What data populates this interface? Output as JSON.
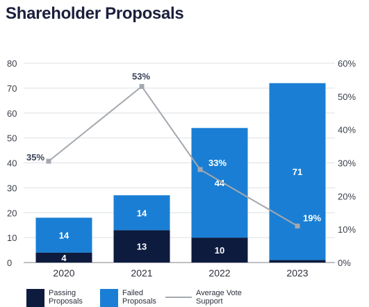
{
  "header": {
    "title": "Shareholder Proposals"
  },
  "chart_data": {
    "type": "bar",
    "stacked": true,
    "categories": [
      "2020",
      "2021",
      "2022",
      "2023"
    ],
    "series": [
      {
        "name": "Passing Proposals",
        "values": [
          4,
          13,
          10,
          1
        ],
        "color": "#0d1b3e"
      },
      {
        "name": "Failed Proposals",
        "values": [
          14,
          14,
          44,
          71
        ],
        "color": "#1a7fd4"
      }
    ],
    "line_series": {
      "name": "Average Vote Support",
      "values": [
        35,
        53,
        33,
        19
      ],
      "positions": [
        30.5,
        53,
        28,
        11
      ],
      "color": "#a3a8ae",
      "axis": "right"
    },
    "y_left": {
      "min": 0,
      "max": 80,
      "ticks": [
        "0",
        "10",
        "20",
        "30",
        "40",
        "50",
        "60",
        "70",
        "80"
      ]
    },
    "y_right": {
      "min": 0,
      "max": 60,
      "ticks": [
        "0%",
        "10%",
        "20%",
        "30%",
        "40%",
        "50%",
        "60%"
      ]
    },
    "grid": true,
    "legend_position": "bottom"
  },
  "legend": {
    "passing": "Passing Proposals",
    "failed": "Failed Proposals",
    "average": "Average Vote Support"
  }
}
